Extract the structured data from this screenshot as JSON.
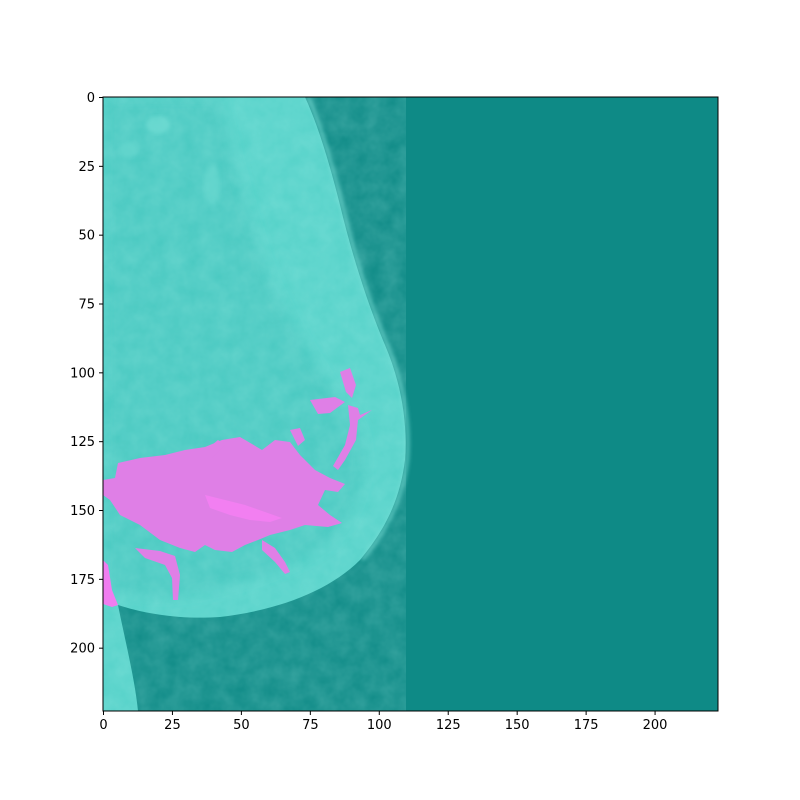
{
  "figure": {
    "background": "#ffffff",
    "image": {
      "description_colors": {
        "background": "#0e8a86",
        "tissue_light": "#5fd8cf",
        "tissue_mid": "#3fc4bd",
        "overlay": "#e67ee9",
        "overlay_bright": "#f07df0"
      }
    }
  },
  "chart_data": {
    "type": "heatmap",
    "title": "",
    "xlabel": "",
    "ylabel": "",
    "xlim": [
      0,
      223
    ],
    "ylim": [
      223,
      0
    ],
    "xticks": [
      0,
      25,
      50,
      75,
      100,
      125,
      150,
      175,
      200
    ],
    "yticks": [
      0,
      25,
      50,
      75,
      100,
      125,
      150,
      175,
      200
    ],
    "grid": false,
    "legend": "none"
  }
}
